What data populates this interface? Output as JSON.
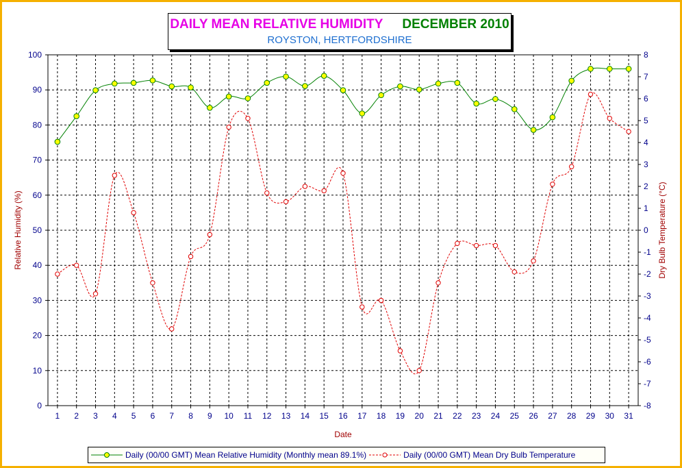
{
  "title": {
    "main": "DAILY MEAN RELATIVE HUMIDITY",
    "date": "DECEMBER 2010",
    "location": "ROYSTON, HERTFORDSHIRE"
  },
  "colors": {
    "frame": "#f5b000",
    "humidity_line": "#008000",
    "humidity_marker": "#ffff00",
    "temperature_line": "#e00000",
    "grid": "#000000",
    "tick_text": "#00008b",
    "axis_title": "#a00000"
  },
  "chart_data": {
    "type": "line",
    "title": "DAILY MEAN RELATIVE HUMIDITY DECEMBER 2010",
    "subtitle": "ROYSTON, HERTFORDSHIRE",
    "xlabel": "Date",
    "ylabel": "Relative Humidity (%)",
    "y2label": "Dry Bulb Temperature (°C)",
    "x": [
      1,
      2,
      3,
      4,
      5,
      6,
      7,
      8,
      9,
      10,
      11,
      12,
      13,
      14,
      15,
      16,
      17,
      18,
      19,
      20,
      21,
      22,
      23,
      24,
      25,
      26,
      27,
      28,
      29,
      30,
      31
    ],
    "ylim": [
      0,
      100
    ],
    "y_ticks": [
      0,
      10,
      20,
      30,
      40,
      50,
      60,
      70,
      80,
      90,
      100
    ],
    "y2lim": [
      -8,
      8
    ],
    "y2_ticks": [
      -8,
      -7,
      -6,
      -5,
      -4,
      -3,
      -2,
      -1,
      0,
      1,
      2,
      3,
      4,
      5,
      6,
      7,
      8
    ],
    "grid": true,
    "legend_position": "bottom",
    "series": [
      {
        "name": "Daily (00/00 GMT) Mean Relative Humidity (Monthly mean 89.1%)",
        "axis": "left",
        "values": [
          75.2,
          82.5,
          89.9,
          91.8,
          92.0,
          92.7,
          91.0,
          90.7,
          84.9,
          88.1,
          87.6,
          92.0,
          93.8,
          91.1,
          94.0,
          89.9,
          83.3,
          88.5,
          91.0,
          90.1,
          91.8,
          92.0,
          86.1,
          87.4,
          84.5,
          78.6,
          82.2,
          92.6,
          96.0,
          96.0,
          96.0
        ]
      },
      {
        "name": "Daily (00/00 GMT) Mean Dry Bulb Temperature",
        "axis": "right",
        "values": [
          -2.0,
          -1.6,
          -2.9,
          2.5,
          0.8,
          -2.4,
          -4.5,
          -1.2,
          -0.2,
          4.7,
          5.1,
          1.7,
          1.3,
          2.0,
          1.8,
          2.6,
          -3.5,
          -3.2,
          -5.5,
          -6.4,
          -2.4,
          -0.6,
          -0.7,
          -0.7,
          -1.9,
          -1.4,
          2.1,
          2.9,
          6.2,
          5.1,
          4.5
        ]
      }
    ]
  }
}
